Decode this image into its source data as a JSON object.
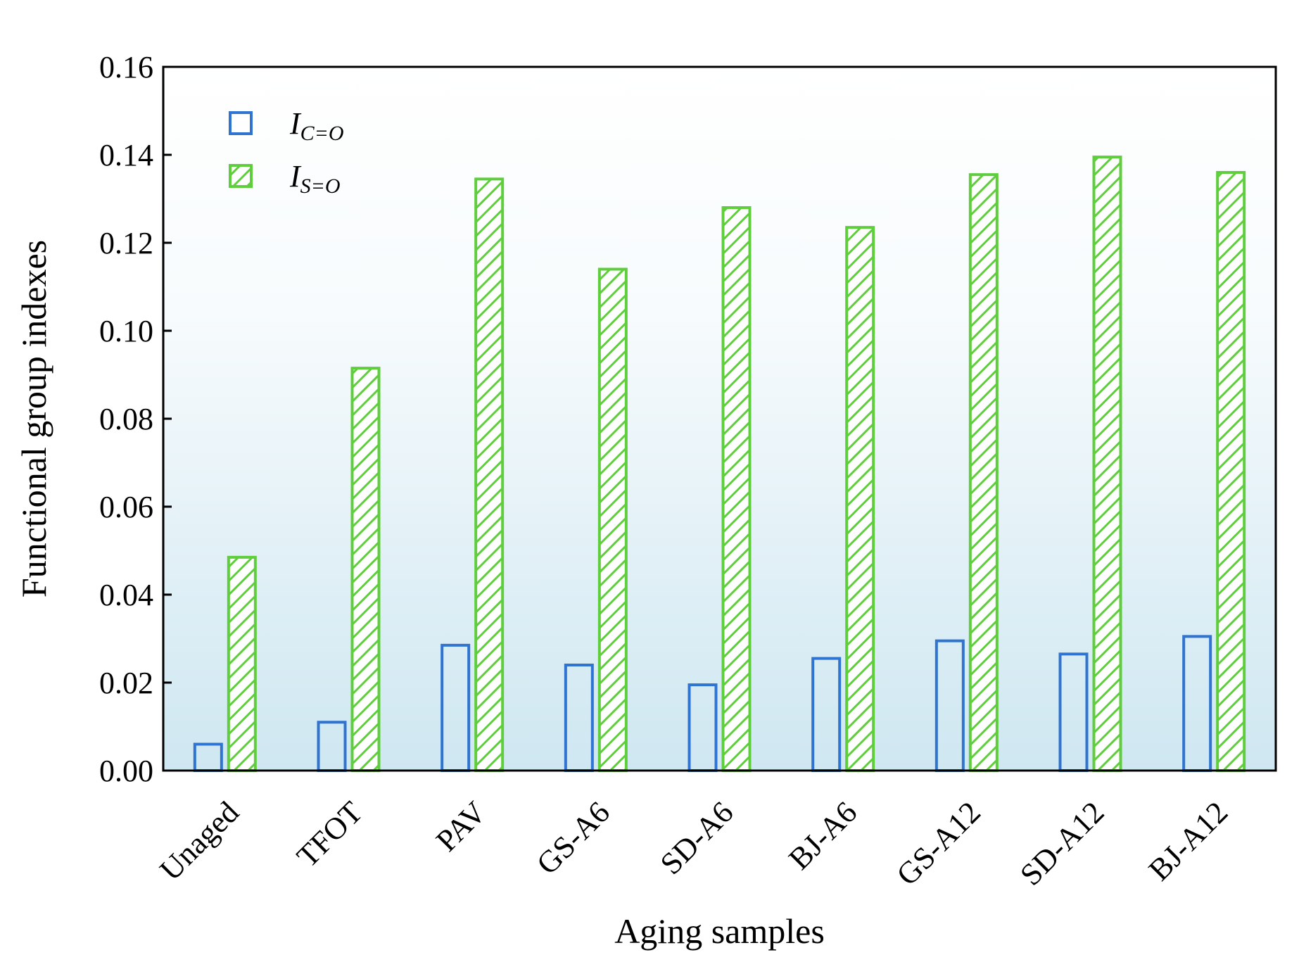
{
  "chart_data": {
    "type": "bar",
    "xlabel": "Aging samples",
    "ylabel": "Functional group indexes",
    "ylim": [
      0,
      0.16
    ],
    "yticks": [
      "0.00",
      "0.02",
      "0.04",
      "0.06",
      "0.08",
      "0.10",
      "0.12",
      "0.14",
      "0.16"
    ],
    "categories": [
      "Unaged",
      "TFOT",
      "PAV",
      "GS-A6",
      "SD-A6",
      "BJ-A6",
      "GS-A12",
      "SD-A12",
      "BJ-A12"
    ],
    "series": [
      {
        "name_main": "I",
        "name_sub": "C=O",
        "style": "open",
        "color": "#2f74d0",
        "values": [
          0.006,
          0.011,
          0.0285,
          0.024,
          0.0195,
          0.0255,
          0.0295,
          0.0265,
          0.0305
        ]
      },
      {
        "name_main": "I",
        "name_sub": "S=O",
        "style": "hatched",
        "color": "#5fce3c",
        "values": [
          0.0485,
          0.0915,
          0.1345,
          0.114,
          0.128,
          0.1235,
          0.1355,
          0.1395,
          0.136
        ]
      }
    ],
    "legend_position": "top-left",
    "grid": false,
    "plot_background": "gradient white-to-light-blue"
  }
}
